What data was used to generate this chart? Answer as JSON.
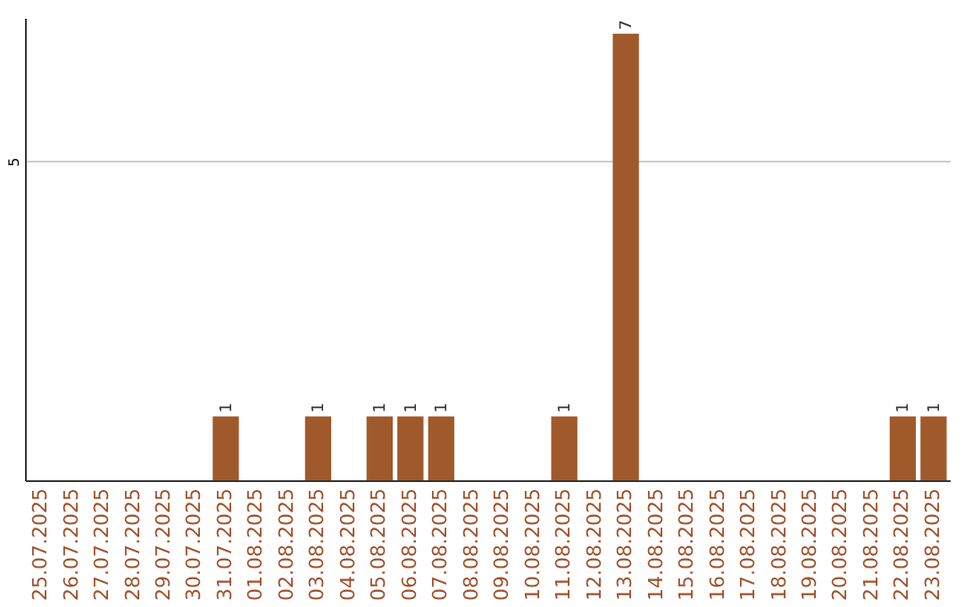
{
  "chart_data": {
    "type": "bar",
    "categories": [
      "25.07.2025",
      "26.07.2025",
      "27.07.2025",
      "28.07.2025",
      "29.07.2025",
      "30.07.2025",
      "31.07.2025",
      "01.08.2025",
      "02.08.2025",
      "03.08.2025",
      "04.08.2025",
      "05.08.2025",
      "06.08.2025",
      "07.08.2025",
      "08.08.2025",
      "09.08.2025",
      "10.08.2025",
      "11.08.2025",
      "12.08.2025",
      "13.08.2025",
      "14.08.2025",
      "15.08.2025",
      "16.08.2025",
      "17.08.2025",
      "18.08.2025",
      "19.08.2025",
      "20.08.2025",
      "21.08.2025",
      "22.08.2025",
      "23.08.2025"
    ],
    "values": [
      0,
      0,
      0,
      0,
      0,
      0,
      1,
      0,
      0,
      1,
      0,
      1,
      1,
      1,
      0,
      0,
      0,
      1,
      0,
      7,
      0,
      0,
      0,
      0,
      0,
      0,
      0,
      0,
      1,
      1
    ],
    "value_labels": [
      null,
      null,
      null,
      null,
      null,
      null,
      "1",
      null,
      null,
      "1",
      null,
      "1",
      "1",
      "1",
      null,
      null,
      null,
      "1",
      null,
      "7",
      null,
      null,
      null,
      null,
      null,
      null,
      null,
      null,
      "1",
      "1"
    ],
    "color": "#a0592a",
    "ylim": [
      0,
      7.25
    ],
    "yticks": [
      5
    ],
    "grid": "y"
  }
}
